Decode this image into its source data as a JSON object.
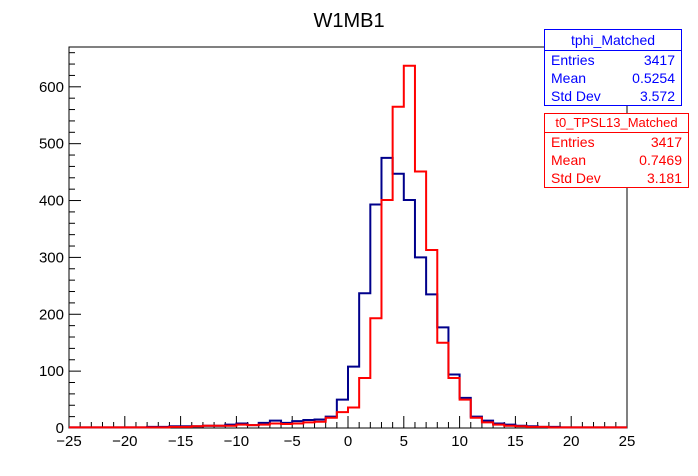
{
  "chart_data": {
    "type": "histogram",
    "title": "W1MB1",
    "xlabel": "",
    "ylabel": "",
    "xlim": [
      -25,
      25
    ],
    "ylim": [
      0,
      670
    ],
    "bin_width": 1,
    "x_ticks": [
      -25,
      -20,
      -15,
      -10,
      -5,
      0,
      5,
      10,
      15,
      20,
      25
    ],
    "x_tick_labels": [
      "−25",
      "−20",
      "−15",
      "−10",
      "−5",
      "0",
      "5",
      "10",
      "15",
      "20",
      "25"
    ],
    "y_ticks": [
      0,
      100,
      200,
      300,
      400,
      500,
      600
    ],
    "grid": false,
    "series": [
      {
        "name": "tphi_Matched",
        "color": "#00008b",
        "values": [
          1,
          1,
          1,
          1,
          1,
          1,
          1,
          2,
          2,
          3,
          3,
          3,
          4,
          4,
          6,
          8,
          5,
          9,
          13,
          9,
          12,
          14,
          15,
          20,
          50,
          108,
          237,
          393,
          475,
          447,
          401,
          300,
          235,
          177,
          94,
          53,
          20,
          13,
          8,
          6,
          4,
          3,
          2,
          2,
          1,
          1,
          1,
          1,
          1,
          1
        ]
      },
      {
        "name": "t0_TPSL13_Matched",
        "color": "#ff0000",
        "values": [
          1,
          1,
          1,
          1,
          1,
          1,
          1,
          1,
          1,
          2,
          2,
          3,
          4,
          4,
          4,
          6,
          5,
          6,
          8,
          7,
          8,
          10,
          11,
          18,
          28,
          36,
          88,
          193,
          401,
          565,
          637,
          451,
          313,
          150,
          88,
          50,
          18,
          10,
          6,
          4,
          3,
          2,
          2,
          1,
          1,
          1,
          1,
          1,
          1,
          1
        ]
      }
    ]
  },
  "stats_boxes": [
    {
      "title": "tphi_Matched",
      "color": "#0000ff",
      "rows": [
        {
          "label": "Entries",
          "value": "3417"
        },
        {
          "label": "Mean",
          "value": "0.5254"
        },
        {
          "label": "Std Dev",
          "value": "3.572"
        }
      ]
    },
    {
      "title": "t0_TPSL13_Matched",
      "color": "#ff0000",
      "rows": [
        {
          "label": "Entries",
          "value": "3417"
        },
        {
          "label": "Mean",
          "value": "0.7469"
        },
        {
          "label": "Std Dev",
          "value": "3.181"
        }
      ]
    }
  ]
}
